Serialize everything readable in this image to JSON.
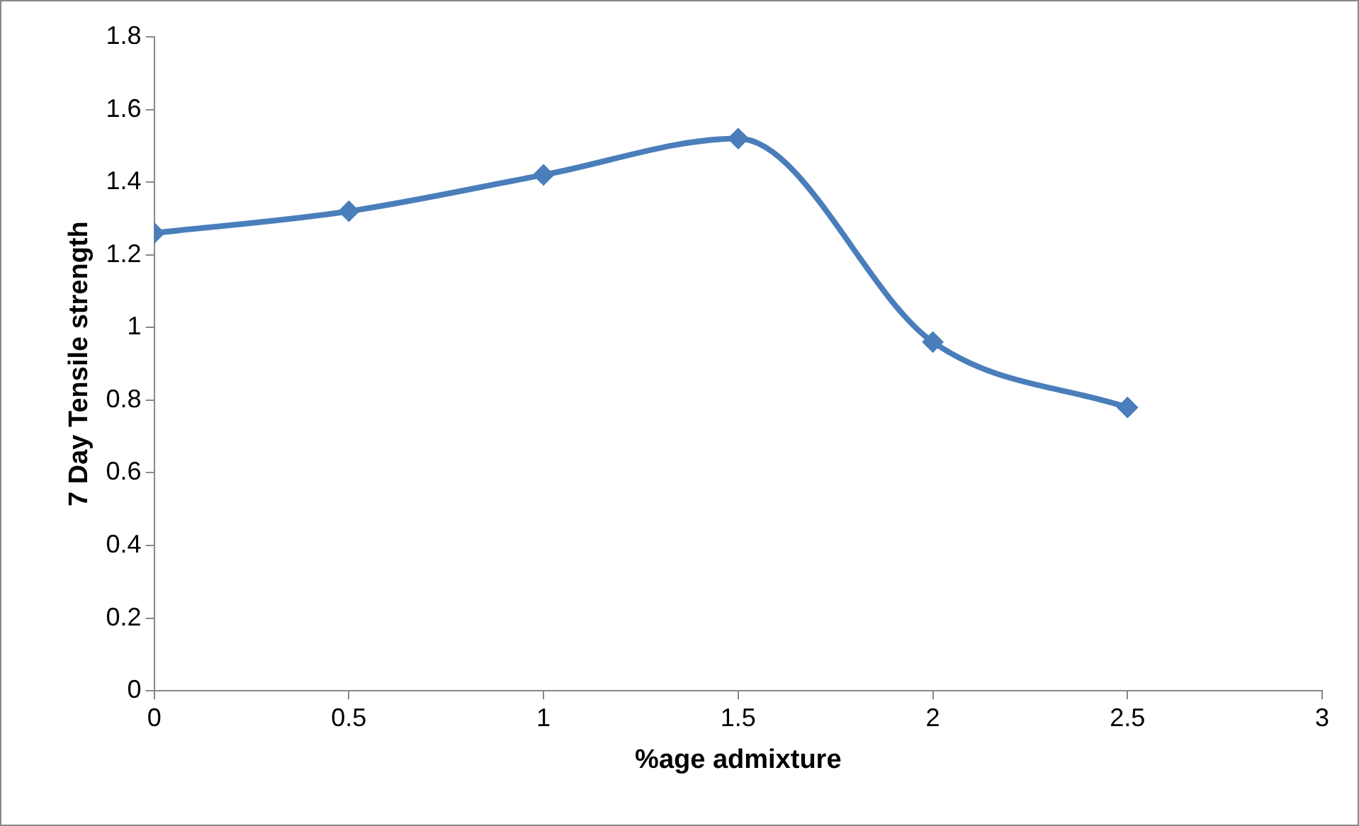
{
  "chart_data": {
    "type": "line",
    "xlabel": "%age admixture",
    "ylabel": "7 Day Tensile strength",
    "x": [
      0,
      0.5,
      1,
      1.5,
      2,
      2.5
    ],
    "series": [
      {
        "color": "#4a7ebb",
        "values": [
          1.26,
          1.32,
          1.42,
          1.52,
          0.96,
          0.78
        ]
      }
    ],
    "xlim": [
      0,
      3
    ],
    "xticks": [
      0,
      0.5,
      1,
      1.5,
      2,
      2.5,
      3
    ],
    "ylim": [
      0,
      1.8
    ],
    "yticks": [
      0,
      0.2,
      0.4,
      0.6,
      0.8,
      1,
      1.2,
      1.4,
      1.6,
      1.8
    ],
    "grid": false,
    "legend": false,
    "marker": "diamond",
    "line_style": "solid"
  }
}
